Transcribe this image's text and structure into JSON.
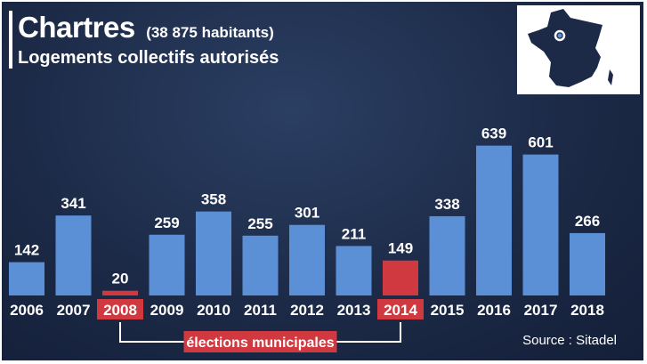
{
  "header": {
    "city": "Chartres",
    "population": "(38 875 habitants)",
    "subtitle": "Logements collectifs autorisés"
  },
  "annotation": {
    "label": "élections municipales",
    "highlight_color": "#d0393f"
  },
  "source": "Source : Sitadel",
  "colors": {
    "bar": "#5b8fd6",
    "bar_highlight": "#d0393f",
    "background": "#1c2a47",
    "text": "#ffffff"
  },
  "map_icon": "france-map-icon",
  "chart_data": {
    "type": "bar",
    "title": "Logements collectifs autorisés",
    "categories": [
      "2006",
      "2007",
      "2008",
      "2009",
      "2010",
      "2011",
      "2012",
      "2013",
      "2014",
      "2015",
      "2016",
      "2017",
      "2018"
    ],
    "values": [
      142,
      341,
      20,
      259,
      358,
      255,
      301,
      211,
      149,
      338,
      639,
      601,
      266
    ],
    "highlighted": [
      "2008",
      "2014"
    ],
    "ylim": [
      0,
      700
    ],
    "xlabel": "",
    "ylabel": "",
    "grid": false
  }
}
